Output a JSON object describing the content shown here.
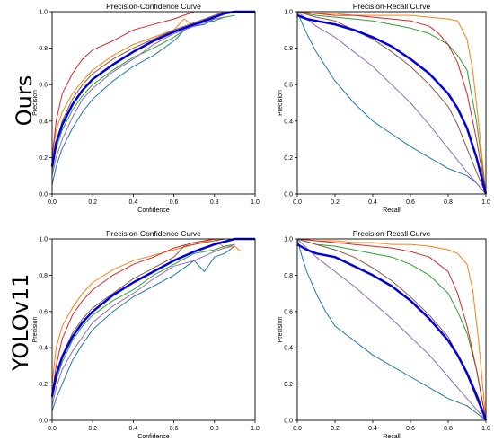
{
  "row_labels": [
    "Ours",
    "YOLOv11"
  ],
  "chart_data": [
    {
      "id": "ours-pc",
      "type": "line",
      "title": "Precision-Confidence Curve",
      "xlabel": "Confidence",
      "ylabel": "Precision",
      "xlim": [
        0,
        1
      ],
      "ylim": [
        0,
        1
      ],
      "xticks": [
        "0.0",
        "0.2",
        "0.4",
        "0.6",
        "0.8",
        "1.0"
      ],
      "yticks": [
        "0.0",
        "0.2",
        "0.4",
        "0.6",
        "0.8",
        "1.0"
      ],
      "grid": false,
      "series": [
        {
          "color": "#1f77b4",
          "width": 1,
          "x": [
            0,
            0.02,
            0.05,
            0.1,
            0.15,
            0.2,
            0.3,
            0.4,
            0.5,
            0.55,
            0.6,
            0.62,
            0.65,
            0.7,
            0.75,
            0.8,
            0.85
          ],
          "y": [
            0.05,
            0.15,
            0.25,
            0.36,
            0.45,
            0.52,
            0.62,
            0.7,
            0.76,
            0.8,
            0.84,
            0.86,
            0.9,
            0.92,
            0.93,
            0.96,
            0.97
          ]
        },
        {
          "color": "#ff7f0e",
          "width": 1,
          "x": [
            0,
            0.02,
            0.05,
            0.1,
            0.15,
            0.2,
            0.3,
            0.4,
            0.5,
            0.6,
            0.65,
            0.7,
            0.75,
            0.8,
            0.85
          ],
          "y": [
            0.2,
            0.35,
            0.45,
            0.55,
            0.62,
            0.68,
            0.76,
            0.82,
            0.86,
            0.9,
            0.96,
            0.92,
            0.95,
            0.96,
            0.97
          ]
        },
        {
          "color": "#2ca02c",
          "width": 1,
          "x": [
            0,
            0.02,
            0.05,
            0.1,
            0.15,
            0.2,
            0.3,
            0.4,
            0.5,
            0.6,
            0.68,
            0.75,
            0.8,
            0.85,
            0.9
          ],
          "y": [
            0.12,
            0.25,
            0.35,
            0.46,
            0.54,
            0.6,
            0.68,
            0.75,
            0.8,
            0.86,
            0.92,
            0.94,
            0.95,
            0.97,
            0.98
          ]
        },
        {
          "color": "#d62728",
          "width": 1,
          "x": [
            0,
            0.02,
            0.05,
            0.1,
            0.15,
            0.2,
            0.3,
            0.4,
            0.5,
            0.6,
            0.7,
            0.8,
            0.85
          ],
          "y": [
            0.2,
            0.4,
            0.55,
            0.66,
            0.74,
            0.79,
            0.84,
            0.9,
            0.93,
            0.96,
            1.0,
            1.0,
            1.0
          ]
        },
        {
          "color": "#9467bd",
          "width": 1,
          "x": [
            0,
            0.02,
            0.05,
            0.1,
            0.15,
            0.2,
            0.3,
            0.4,
            0.5,
            0.6,
            0.7,
            0.8,
            0.85
          ],
          "y": [
            0.1,
            0.2,
            0.3,
            0.42,
            0.52,
            0.58,
            0.67,
            0.74,
            0.82,
            0.88,
            0.92,
            0.96,
            0.97
          ]
        },
        {
          "color": "#8c564b",
          "width": 1,
          "x": [
            0,
            0.02,
            0.05,
            0.1,
            0.15,
            0.2,
            0.3,
            0.4,
            0.5,
            0.6,
            0.7,
            0.8,
            0.85
          ],
          "y": [
            0.15,
            0.28,
            0.4,
            0.52,
            0.6,
            0.66,
            0.74,
            0.8,
            0.85,
            0.9,
            0.94,
            0.98,
            1.0
          ]
        },
        {
          "color": "#0000dd",
          "width": 2.5,
          "x": [
            0,
            0.02,
            0.05,
            0.1,
            0.15,
            0.2,
            0.3,
            0.4,
            0.5,
            0.6,
            0.7,
            0.8,
            0.85,
            0.9,
            1.0
          ],
          "y": [
            0.15,
            0.28,
            0.38,
            0.49,
            0.57,
            0.63,
            0.71,
            0.78,
            0.84,
            0.89,
            0.93,
            0.97,
            0.99,
            1.0,
            1.0
          ]
        }
      ]
    },
    {
      "id": "ours-pr",
      "type": "line",
      "title": "Precision-Recall Curve",
      "xlabel": "Recall",
      "ylabel": "Precision",
      "xlim": [
        0,
        1
      ],
      "ylim": [
        0,
        1
      ],
      "xticks": [
        "0.0",
        "0.2",
        "0.4",
        "0.6",
        "0.8",
        "1.0"
      ],
      "yticks": [
        "0.0",
        "0.2",
        "0.4",
        "0.6",
        "0.8",
        "1.0"
      ],
      "grid": false,
      "series": [
        {
          "color": "#1f77b4",
          "width": 1,
          "x": [
            0,
            0.02,
            0.05,
            0.1,
            0.15,
            0.2,
            0.3,
            0.4,
            0.5,
            0.6,
            0.7,
            0.8,
            0.9,
            0.95,
            1.0
          ],
          "y": [
            1.0,
            0.95,
            0.88,
            0.78,
            0.7,
            0.62,
            0.5,
            0.4,
            0.33,
            0.26,
            0.2,
            0.14,
            0.1,
            0.06,
            0.0
          ]
        },
        {
          "color": "#ff7f0e",
          "width": 1,
          "x": [
            0,
            0.1,
            0.2,
            0.3,
            0.4,
            0.5,
            0.6,
            0.7,
            0.8,
            0.85,
            0.9,
            0.93,
            0.96,
            1.0
          ],
          "y": [
            1.0,
            0.99,
            0.99,
            0.98,
            0.98,
            0.98,
            0.98,
            0.97,
            0.96,
            0.95,
            0.85,
            0.68,
            0.4,
            0.0
          ]
        },
        {
          "color": "#2ca02c",
          "width": 1,
          "x": [
            0,
            0.1,
            0.2,
            0.3,
            0.4,
            0.5,
            0.6,
            0.7,
            0.8,
            0.85,
            0.9,
            0.95,
            1.0
          ],
          "y": [
            1.0,
            0.98,
            0.97,
            0.96,
            0.95,
            0.93,
            0.91,
            0.88,
            0.82,
            0.76,
            0.68,
            0.4,
            0.0
          ]
        },
        {
          "color": "#d62728",
          "width": 1,
          "x": [
            0,
            0.1,
            0.2,
            0.3,
            0.4,
            0.5,
            0.6,
            0.7,
            0.75,
            0.8,
            0.85,
            0.9,
            0.95,
            1.0
          ],
          "y": [
            1.0,
            0.99,
            0.98,
            0.98,
            0.97,
            0.96,
            0.95,
            0.92,
            0.88,
            0.82,
            0.72,
            0.55,
            0.3,
            0.0
          ]
        },
        {
          "color": "#9467bd",
          "width": 1,
          "x": [
            0,
            0.1,
            0.2,
            0.3,
            0.4,
            0.5,
            0.6,
            0.7,
            0.8,
            0.9,
            1.0
          ],
          "y": [
            1.0,
            0.92,
            0.86,
            0.78,
            0.7,
            0.6,
            0.5,
            0.38,
            0.25,
            0.12,
            0.0
          ]
        },
        {
          "color": "#8c564b",
          "width": 1,
          "x": [
            0,
            0.1,
            0.2,
            0.3,
            0.4,
            0.5,
            0.6,
            0.7,
            0.8,
            0.85,
            0.9,
            0.95,
            1.0
          ],
          "y": [
            1.0,
            0.97,
            0.95,
            0.9,
            0.85,
            0.78,
            0.7,
            0.6,
            0.48,
            0.38,
            0.25,
            0.12,
            0.0
          ]
        },
        {
          "color": "#0000dd",
          "width": 2.5,
          "x": [
            0,
            0.05,
            0.1,
            0.2,
            0.3,
            0.4,
            0.5,
            0.6,
            0.7,
            0.8,
            0.85,
            0.9,
            0.95,
            1.0
          ],
          "y": [
            0.98,
            0.96,
            0.95,
            0.93,
            0.9,
            0.86,
            0.81,
            0.74,
            0.66,
            0.55,
            0.47,
            0.36,
            0.2,
            0.0
          ]
        }
      ]
    },
    {
      "id": "yolo-pc",
      "type": "line",
      "title": "Precision-Confidence Curve",
      "xlabel": "Confidence",
      "ylabel": "Precision",
      "xlim": [
        0,
        1
      ],
      "ylim": [
        0,
        1
      ],
      "xticks": [
        "0.0",
        "0.2",
        "0.4",
        "0.6",
        "0.8",
        "1.0"
      ],
      "yticks": [
        "0.0",
        "0.2",
        "0.4",
        "0.6",
        "0.8",
        "1.0"
      ],
      "grid": false,
      "series": [
        {
          "color": "#1f77b4",
          "width": 1,
          "x": [
            0,
            0.02,
            0.05,
            0.1,
            0.15,
            0.2,
            0.3,
            0.4,
            0.5,
            0.6,
            0.65,
            0.7,
            0.75,
            0.8,
            0.85,
            0.9
          ],
          "y": [
            0.05,
            0.12,
            0.2,
            0.33,
            0.42,
            0.5,
            0.6,
            0.68,
            0.74,
            0.8,
            0.84,
            0.88,
            0.82,
            0.9,
            0.92,
            0.96
          ]
        },
        {
          "color": "#ff7f0e",
          "width": 1,
          "x": [
            0,
            0.02,
            0.05,
            0.1,
            0.15,
            0.2,
            0.3,
            0.4,
            0.5,
            0.6,
            0.7,
            0.8,
            0.85,
            0.9,
            0.93
          ],
          "y": [
            0.2,
            0.4,
            0.52,
            0.62,
            0.7,
            0.76,
            0.83,
            0.88,
            0.91,
            0.94,
            0.97,
            1.0,
            0.95,
            0.96,
            0.93
          ]
        },
        {
          "color": "#2ca02c",
          "width": 1,
          "x": [
            0,
            0.02,
            0.05,
            0.1,
            0.15,
            0.2,
            0.3,
            0.4,
            0.5,
            0.6,
            0.7,
            0.8,
            0.85,
            0.9
          ],
          "y": [
            0.12,
            0.22,
            0.32,
            0.44,
            0.52,
            0.58,
            0.66,
            0.72,
            0.8,
            0.86,
            0.92,
            0.94,
            0.96,
            0.97
          ]
        },
        {
          "color": "#d62728",
          "width": 1,
          "x": [
            0,
            0.02,
            0.05,
            0.1,
            0.15,
            0.2,
            0.3,
            0.4,
            0.5,
            0.6,
            0.7,
            0.8,
            0.85
          ],
          "y": [
            0.15,
            0.3,
            0.45,
            0.58,
            0.66,
            0.72,
            0.8,
            0.86,
            0.9,
            0.95,
            0.98,
            1.0,
            1.0
          ]
        },
        {
          "color": "#9467bd",
          "width": 1,
          "x": [
            0,
            0.02,
            0.05,
            0.1,
            0.15,
            0.2,
            0.3,
            0.4,
            0.5,
            0.6,
            0.7,
            0.8,
            0.9
          ],
          "y": [
            0.08,
            0.18,
            0.28,
            0.38,
            0.46,
            0.54,
            0.63,
            0.7,
            0.78,
            0.85,
            0.88,
            0.93,
            0.97
          ]
        },
        {
          "color": "#8c564b",
          "width": 1,
          "x": [
            0,
            0.02,
            0.05,
            0.1,
            0.15,
            0.2,
            0.3,
            0.4,
            0.5,
            0.6,
            0.65,
            0.7,
            0.8,
            0.85
          ],
          "y": [
            0.12,
            0.25,
            0.36,
            0.48,
            0.56,
            0.62,
            0.7,
            0.78,
            0.84,
            0.9,
            0.96,
            0.97,
            0.99,
            1.0
          ]
        },
        {
          "color": "#0000dd",
          "width": 2.5,
          "x": [
            0,
            0.02,
            0.05,
            0.1,
            0.15,
            0.2,
            0.3,
            0.4,
            0.5,
            0.6,
            0.7,
            0.8,
            0.9,
            1.0
          ],
          "y": [
            0.13,
            0.25,
            0.35,
            0.46,
            0.54,
            0.6,
            0.69,
            0.76,
            0.82,
            0.88,
            0.93,
            0.97,
            1.0,
            1.0
          ]
        }
      ]
    },
    {
      "id": "yolo-pr",
      "type": "line",
      "title": "Precision-Recall Curve",
      "xlabel": "Recall",
      "ylabel": "Precision",
      "xlim": [
        0,
        1
      ],
      "ylim": [
        0,
        1
      ],
      "xticks": [
        "0.0",
        "0.2",
        "0.4",
        "0.6",
        "0.8",
        "1.0"
      ],
      "yticks": [
        "0.0",
        "0.2",
        "0.4",
        "0.6",
        "0.8",
        "1.0"
      ],
      "grid": false,
      "series": [
        {
          "color": "#1f77b4",
          "width": 1,
          "x": [
            0,
            0.02,
            0.05,
            0.1,
            0.15,
            0.2,
            0.3,
            0.4,
            0.5,
            0.6,
            0.7,
            0.8,
            0.9,
            0.95,
            1.0
          ],
          "y": [
            1.0,
            0.92,
            0.82,
            0.7,
            0.6,
            0.52,
            0.44,
            0.36,
            0.3,
            0.24,
            0.18,
            0.12,
            0.08,
            0.04,
            0.0
          ]
        },
        {
          "color": "#ff7f0e",
          "width": 1,
          "x": [
            0,
            0.1,
            0.2,
            0.3,
            0.4,
            0.5,
            0.6,
            0.7,
            0.8,
            0.85,
            0.9,
            0.93,
            0.96,
            1.0
          ],
          "y": [
            1.0,
            0.99,
            0.99,
            0.98,
            0.98,
            0.97,
            0.97,
            0.96,
            0.94,
            0.92,
            0.86,
            0.72,
            0.45,
            0.0
          ]
        },
        {
          "color": "#2ca02c",
          "width": 1,
          "x": [
            0,
            0.1,
            0.2,
            0.3,
            0.4,
            0.5,
            0.6,
            0.7,
            0.8,
            0.85,
            0.9,
            0.95,
            1.0
          ],
          "y": [
            1.0,
            0.97,
            0.96,
            0.94,
            0.92,
            0.9,
            0.86,
            0.8,
            0.7,
            0.6,
            0.48,
            0.28,
            0.0
          ]
        },
        {
          "color": "#d62728",
          "width": 1,
          "x": [
            0,
            0.1,
            0.2,
            0.3,
            0.4,
            0.5,
            0.6,
            0.7,
            0.8,
            0.85,
            0.9,
            0.95,
            1.0
          ],
          "y": [
            1.0,
            0.99,
            0.98,
            0.97,
            0.96,
            0.95,
            0.93,
            0.9,
            0.82,
            0.7,
            0.52,
            0.28,
            0.0
          ]
        },
        {
          "color": "#9467bd",
          "width": 1,
          "x": [
            0,
            0.1,
            0.2,
            0.3,
            0.4,
            0.5,
            0.6,
            0.7,
            0.8,
            0.9,
            1.0
          ],
          "y": [
            1.0,
            0.9,
            0.82,
            0.74,
            0.65,
            0.56,
            0.46,
            0.36,
            0.24,
            0.12,
            0.0
          ]
        },
        {
          "color": "#8c564b",
          "width": 1,
          "x": [
            0,
            0.1,
            0.2,
            0.3,
            0.4,
            0.5,
            0.6,
            0.7,
            0.8,
            0.85,
            0.9,
            0.95,
            1.0
          ],
          "y": [
            1.0,
            0.97,
            0.94,
            0.9,
            0.84,
            0.77,
            0.68,
            0.58,
            0.46,
            0.36,
            0.25,
            0.12,
            0.0
          ]
        },
        {
          "color": "#0000dd",
          "width": 2.5,
          "x": [
            0,
            0.05,
            0.1,
            0.2,
            0.3,
            0.4,
            0.5,
            0.6,
            0.7,
            0.8,
            0.85,
            0.9,
            0.95,
            1.0
          ],
          "y": [
            0.97,
            0.94,
            0.92,
            0.9,
            0.85,
            0.8,
            0.74,
            0.66,
            0.56,
            0.44,
            0.36,
            0.26,
            0.14,
            0.0
          ]
        }
      ]
    }
  ]
}
